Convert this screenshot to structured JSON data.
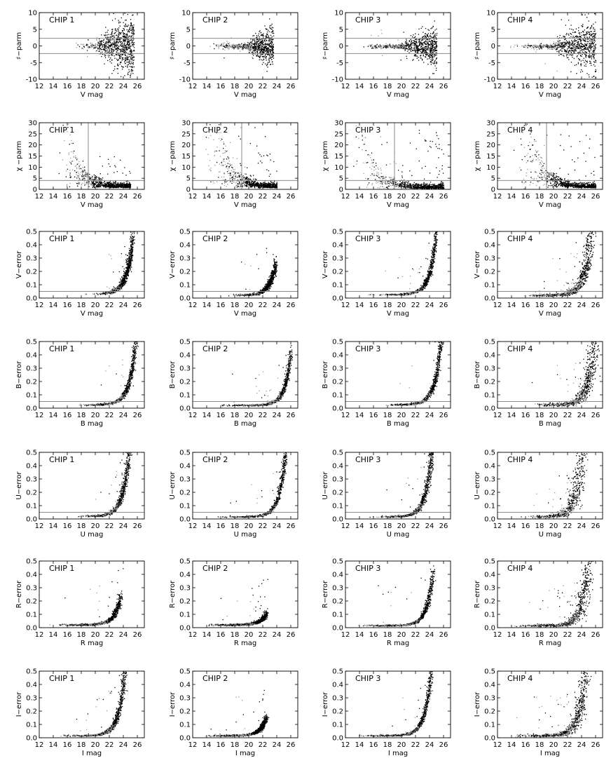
{
  "figure": {
    "chip_labels": [
      "CHIP 1",
      "CHIP 2",
      "CHIP 3",
      "CHIP 4"
    ],
    "rows": [
      {
        "ylabel": "♯−parm",
        "xlabel": "V mag"
      },
      {
        "ylabel": "χ −parm",
        "xlabel": "V mag"
      },
      {
        "ylabel": "V−error",
        "xlabel": "V mag"
      },
      {
        "ylabel": "B−error",
        "xlabel": "B mag"
      },
      {
        "ylabel": "U−error",
        "xlabel": "U mag"
      },
      {
        "ylabel": "R−error",
        "xlabel": "R mag"
      },
      {
        "ylabel": "I−error",
        "xlabel": "I mag"
      }
    ],
    "colors": {
      "points": "#000000",
      "highlight": "#9a9a9a",
      "refline": "#8a8a8a"
    }
  },
  "chart_data": [
    {
      "type": "scatter",
      "title": "",
      "xlabel": "V mag",
      "ylabel": "♯−parm",
      "xlim": [
        12,
        27
      ],
      "ylim": [
        -10,
        10
      ],
      "xticks": [
        12,
        14,
        16,
        18,
        20,
        22,
        24,
        26
      ],
      "yticks": [
        -10,
        -5,
        0,
        5,
        10
      ],
      "reference_lines": {
        "horizontal": [
          2.3,
          -2.3
        ]
      },
      "grid": false,
      "series": [
        {
          "chip": "CHIP 1",
          "shape": "sharp",
          "amplitude": [
            1.5,
            5.0,
            2.6,
            2.0
          ],
          "mag_range": [
            17,
            25.5
          ]
        },
        {
          "chip": "CHIP 2",
          "shape": "sharp",
          "amplitude": [
            1.5,
            4.0,
            2.0,
            1.0
          ],
          "mag_range": [
            14,
            23.5
          ]
        },
        {
          "chip": "CHIP 3",
          "shape": "sharp",
          "amplitude": [
            1.0,
            5.0,
            2.2,
            3.0
          ],
          "mag_range": [
            14,
            25
          ]
        },
        {
          "chip": "CHIP 4",
          "shape": "sharp",
          "amplitude": [
            1.2,
            9.5,
            3.8,
            5.0
          ],
          "mag_range": [
            13,
            26
          ]
        }
      ]
    },
    {
      "type": "scatter",
      "title": "",
      "xlabel": "V mag",
      "ylabel": "χ −parm",
      "xlim": [
        12,
        27
      ],
      "ylim": [
        0,
        30
      ],
      "xticks": [
        12,
        14,
        16,
        18,
        20,
        22,
        24,
        26
      ],
      "yticks": [
        0,
        5,
        10,
        15,
        20,
        25,
        30
      ],
      "reference_lines": {
        "horizontal": [
          4
        ],
        "vertical": [
          19
        ]
      },
      "grid": false,
      "series": [
        {
          "chip": "CHIP 1",
          "shape": "chi",
          "scale": [
            0.8,
            5.0,
            15.0
          ],
          "mag_range": [
            14,
            25
          ]
        },
        {
          "chip": "CHIP 2",
          "shape": "chi",
          "scale": [
            0.8,
            4.0,
            28.0
          ],
          "mag_range": [
            13,
            24
          ]
        },
        {
          "chip": "CHIP 3",
          "shape": "chi",
          "scale": [
            0.5,
            2.0,
            27.0
          ],
          "mag_range": [
            13,
            26
          ]
        },
        {
          "chip": "CHIP 4",
          "shape": "chi",
          "scale": [
            0.8,
            8.0,
            26.0
          ],
          "mag_range": [
            13,
            26
          ]
        }
      ]
    },
    {
      "type": "scatter",
      "title": "",
      "xlabel": "V mag",
      "ylabel": "V−error",
      "xlim": [
        12,
        27
      ],
      "ylim": [
        0,
        0.5
      ],
      "xticks": [
        12,
        14,
        16,
        18,
        20,
        22,
        24,
        26
      ],
      "yticks": [
        0.0,
        0.1,
        0.2,
        0.3,
        0.4,
        0.5
      ],
      "reference_lines": {
        "horizontal": [
          0.05
        ]
      },
      "grid": false,
      "series": [
        {
          "chip": "CHIP 1",
          "shape": "error",
          "curve": [
            0.3,
            25.0,
            0.03,
            19.0,
            25.3
          ],
          "spread": 0.6
        },
        {
          "chip": "CHIP 2",
          "shape": "error",
          "curve": [
            0.1,
            23.0,
            0.02,
            17.0,
            23.8
          ],
          "spread": 0.6
        },
        {
          "chip": "CHIP 3",
          "shape": "error",
          "curve": [
            0.3,
            24.5,
            0.025,
            15.0,
            25.0
          ],
          "spread": 0.5
        },
        {
          "chip": "CHIP 4",
          "shape": "error",
          "curve": [
            0.5,
            25.3,
            0.02,
            15.0,
            25.8
          ],
          "spread": 1.2
        }
      ]
    },
    {
      "type": "scatter",
      "title": "",
      "xlabel": "B mag",
      "ylabel": "B−error",
      "xlim": [
        12,
        27
      ],
      "ylim": [
        0,
        0.5
      ],
      "xticks": [
        12,
        14,
        16,
        18,
        20,
        22,
        24,
        26
      ],
      "yticks": [
        0.0,
        0.1,
        0.2,
        0.3,
        0.4,
        0.5
      ],
      "reference_lines": {
        "horizontal": [
          0.05
        ]
      },
      "grid": false,
      "series": [
        {
          "chip": "CHIP 1",
          "shape": "error",
          "curve": [
            0.42,
            25.6,
            0.025,
            17.0,
            26.0
          ],
          "spread": 0.5
        },
        {
          "chip": "CHIP 2",
          "shape": "error",
          "curve": [
            0.4,
            26.0,
            0.02,
            15.0,
            26.0
          ],
          "spread": 0.5
        },
        {
          "chip": "CHIP 3",
          "shape": "error",
          "curve": [
            0.48,
            25.6,
            0.025,
            17.0,
            26.0
          ],
          "spread": 0.5
        },
        {
          "chip": "CHIP 4",
          "shape": "error",
          "curve": [
            0.5,
            25.8,
            0.025,
            16.0,
            26.5
          ],
          "spread": 1.2
        }
      ]
    },
    {
      "type": "scatter",
      "title": "",
      "xlabel": "U mag",
      "ylabel": "U−error",
      "xlim": [
        12,
        27
      ],
      "ylim": [
        0,
        0.5
      ],
      "xticks": [
        12,
        14,
        16,
        18,
        20,
        22,
        24,
        26
      ],
      "yticks": [
        0.0,
        0.1,
        0.2,
        0.3,
        0.4,
        0.5
      ],
      "reference_lines": {
        "horizontal": [
          0.05
        ]
      },
      "grid": false,
      "series": [
        {
          "chip": "CHIP 1",
          "shape": "error",
          "curve": [
            0.5,
            24.8,
            0.02,
            17.0,
            25.3
          ],
          "spread": 0.6
        },
        {
          "chip": "CHIP 2",
          "shape": "error",
          "curve": [
            0.48,
            25.2,
            0.015,
            15.0,
            25.5
          ],
          "spread": 0.5
        },
        {
          "chip": "CHIP 3",
          "shape": "error",
          "curve": [
            0.5,
            24.3,
            0.015,
            15.0,
            25.0
          ],
          "spread": 0.6
        },
        {
          "chip": "CHIP 4",
          "shape": "error",
          "curve": [
            0.5,
            24.0,
            0.015,
            15.0,
            25.5
          ],
          "spread": 1.4
        }
      ]
    },
    {
      "type": "scatter",
      "title": "",
      "xlabel": "R mag",
      "ylabel": "R−error",
      "xlim": [
        12,
        27
      ],
      "ylim": [
        0,
        0.5
      ],
      "xticks": [
        12,
        14,
        16,
        18,
        20,
        22,
        24,
        26
      ],
      "yticks": [
        0.0,
        0.1,
        0.2,
        0.3,
        0.4,
        0.5
      ],
      "reference_lines": {},
      "grid": false,
      "series": [
        {
          "chip": "CHIP 1",
          "shape": "error",
          "curve": [
            0.2,
            23.5,
            0.02,
            13.0,
            23.6
          ],
          "spread": 0.6
        },
        {
          "chip": "CHIP 2",
          "shape": "error",
          "curve": [
            0.07,
            22.3,
            0.02,
            13.0,
            22.5
          ],
          "spread": 0.6
        },
        {
          "chip": "CHIP 3",
          "shape": "error",
          "curve": [
            0.3,
            24.2,
            0.015,
            13.0,
            24.5
          ],
          "spread": 0.5
        },
        {
          "chip": "CHIP 4",
          "shape": "error",
          "curve": [
            0.5,
            25.0,
            0.015,
            13.0,
            25.5
          ],
          "spread": 1.3
        }
      ]
    },
    {
      "type": "scatter",
      "title": "",
      "xlabel": "I mag",
      "ylabel": "I−error",
      "xlim": [
        12,
        27
      ],
      "ylim": [
        0,
        0.5
      ],
      "xticks": [
        12,
        14,
        16,
        18,
        20,
        22,
        24,
        26
      ],
      "yticks": [
        0.0,
        0.1,
        0.2,
        0.3,
        0.4,
        0.5
      ],
      "reference_lines": {},
      "grid": false,
      "series": [
        {
          "chip": "CHIP 1",
          "shape": "error",
          "curve": [
            0.4,
            24.0,
            0.015,
            14.0,
            24.3
          ],
          "spread": 0.6
        },
        {
          "chip": "CHIP 2",
          "shape": "error",
          "curve": [
            0.08,
            22.0,
            0.015,
            13.0,
            22.5
          ],
          "spread": 0.6
        },
        {
          "chip": "CHIP 3",
          "shape": "error",
          "curve": [
            0.4,
            24.0,
            0.015,
            13.0,
            24.3
          ],
          "spread": 0.5
        },
        {
          "chip": "CHIP 4",
          "shape": "error",
          "curve": [
            0.5,
            24.5,
            0.015,
            13.0,
            25.0
          ],
          "spread": 1.3
        }
      ]
    }
  ]
}
